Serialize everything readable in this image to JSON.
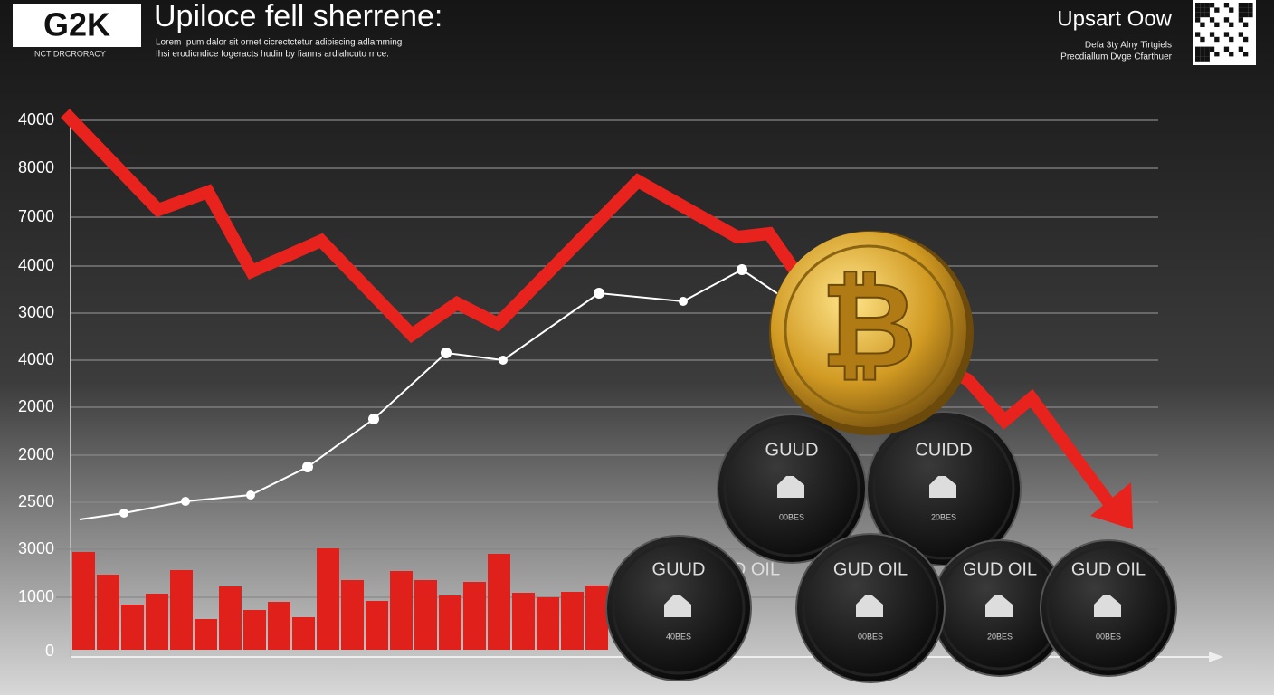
{
  "header": {
    "logo": "G2K",
    "logo_caption": "NCT DRCRORACY",
    "title": "Upiloce fell sherrene:",
    "subtitle_lines": [
      "Lorem Ipum dalor sit ornet  cicrectctetur adipiscing adlamming",
      "Ihsi erodicndice fogeracts hudin by fianns ardiahcuto rnce."
    ]
  },
  "top_right": {
    "title": "Upsart Oow",
    "lines": [
      "Defa 3ty Alny Tirtgiels",
      "Precdiallum Dvge Cfarthuer"
    ]
  },
  "axis_labels": [
    "4000",
    "8000",
    "7000",
    "4000",
    "3000",
    "4000",
    "2000",
    "2000",
    "2500",
    "3000",
    "1000",
    "0"
  ],
  "barrels": [
    {
      "label": "GUUD",
      "sub": "00BES"
    },
    {
      "label": "CUIDD",
      "sub": "20BES"
    },
    {
      "label": "GUUD",
      "sub": "40BES"
    },
    {
      "label": "D OIL",
      "sub": ""
    },
    {
      "label": "GUD OIL",
      "sub": "00BES"
    },
    {
      "label": "GUD OIL",
      "sub": "20BES"
    },
    {
      "label": "GUD OIL",
      "sub": "00BES"
    }
  ]
}
